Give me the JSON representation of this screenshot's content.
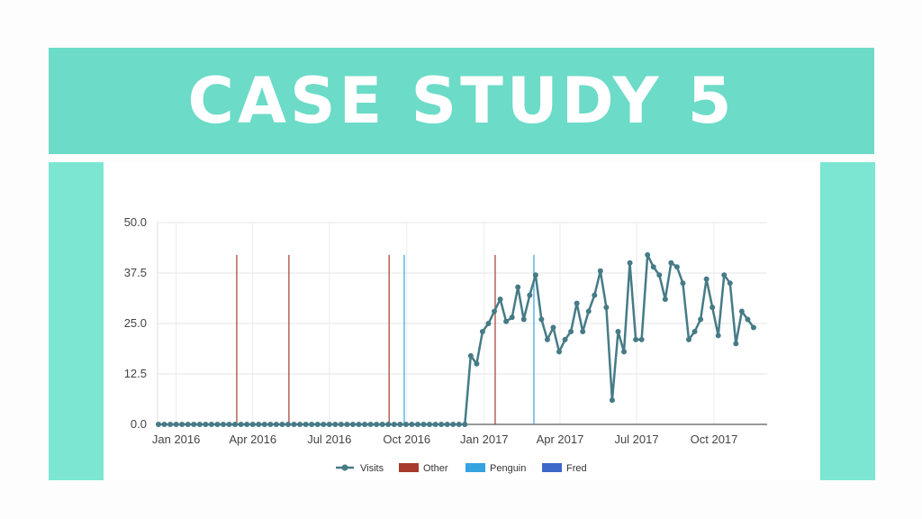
{
  "banner": {
    "title": "Case Study 5"
  },
  "colors": {
    "banner_bg": "#6cdbc8",
    "side_bars": "#7ce6d2",
    "visits": "#467b86",
    "other": "#a83a2c",
    "penguin": "#35a3e0",
    "fred": "#3b68c9"
  },
  "chart_data": {
    "type": "line",
    "title": "",
    "xlabel": "",
    "ylabel": "",
    "ylim": [
      0,
      50
    ],
    "yticks": [
      "0.0",
      "12.5",
      "25.0",
      "37.5",
      "50.0"
    ],
    "xticks": [
      {
        "date": "2016-01-01",
        "label": "Jan 2016"
      },
      {
        "date": "2016-04-01",
        "label": "Apr 2016"
      },
      {
        "date": "2016-07-01",
        "label": "Jul 2016"
      },
      {
        "date": "2016-10-01",
        "label": "Oct 2016"
      },
      {
        "date": "2017-01-01",
        "label": "Jan 2017"
      },
      {
        "date": "2017-04-01",
        "label": "Apr 2017"
      },
      {
        "date": "2017-07-01",
        "label": "Jul 2017"
      },
      {
        "date": "2017-10-01",
        "label": "Oct 2017"
      }
    ],
    "xlim": [
      "2015-12-11",
      "2017-12-02"
    ],
    "grid": true,
    "legend_position": "bottom",
    "series": [
      {
        "name": "Visits",
        "points": [
          {
            "x": "2015-12-11",
            "y": 0
          },
          {
            "x": "2015-12-18",
            "y": 0
          },
          {
            "x": "2015-12-25",
            "y": 0
          },
          {
            "x": "2016-01-01",
            "y": 0
          },
          {
            "x": "2016-01-08",
            "y": 0
          },
          {
            "x": "2016-01-15",
            "y": 0
          },
          {
            "x": "2016-01-22",
            "y": 0
          },
          {
            "x": "2016-01-29",
            "y": 0
          },
          {
            "x": "2016-02-05",
            "y": 0
          },
          {
            "x": "2016-02-12",
            "y": 0
          },
          {
            "x": "2016-02-19",
            "y": 0
          },
          {
            "x": "2016-02-26",
            "y": 0
          },
          {
            "x": "2016-03-04",
            "y": 0
          },
          {
            "x": "2016-03-11",
            "y": 0
          },
          {
            "x": "2016-03-18",
            "y": 0
          },
          {
            "x": "2016-03-25",
            "y": 0
          },
          {
            "x": "2016-04-01",
            "y": 0
          },
          {
            "x": "2016-04-08",
            "y": 0
          },
          {
            "x": "2016-04-15",
            "y": 0
          },
          {
            "x": "2016-04-22",
            "y": 0
          },
          {
            "x": "2016-04-29",
            "y": 0
          },
          {
            "x": "2016-05-06",
            "y": 0
          },
          {
            "x": "2016-05-13",
            "y": 0
          },
          {
            "x": "2016-05-20",
            "y": 0
          },
          {
            "x": "2016-05-27",
            "y": 0
          },
          {
            "x": "2016-06-03",
            "y": 0
          },
          {
            "x": "2016-06-10",
            "y": 0
          },
          {
            "x": "2016-06-17",
            "y": 0
          },
          {
            "x": "2016-06-24",
            "y": 0
          },
          {
            "x": "2016-07-01",
            "y": 0
          },
          {
            "x": "2016-07-08",
            "y": 0
          },
          {
            "x": "2016-07-15",
            "y": 0
          },
          {
            "x": "2016-07-22",
            "y": 0
          },
          {
            "x": "2016-07-29",
            "y": 0
          },
          {
            "x": "2016-08-05",
            "y": 0
          },
          {
            "x": "2016-08-12",
            "y": 0
          },
          {
            "x": "2016-08-19",
            "y": 0
          },
          {
            "x": "2016-08-26",
            "y": 0
          },
          {
            "x": "2016-09-02",
            "y": 0
          },
          {
            "x": "2016-09-09",
            "y": 0
          },
          {
            "x": "2016-09-16",
            "y": 0
          },
          {
            "x": "2016-09-23",
            "y": 0
          },
          {
            "x": "2016-09-30",
            "y": 0
          },
          {
            "x": "2016-10-07",
            "y": 0
          },
          {
            "x": "2016-10-14",
            "y": 0
          },
          {
            "x": "2016-10-21",
            "y": 0
          },
          {
            "x": "2016-10-28",
            "y": 0
          },
          {
            "x": "2016-11-04",
            "y": 0
          },
          {
            "x": "2016-11-11",
            "y": 0
          },
          {
            "x": "2016-11-18",
            "y": 0
          },
          {
            "x": "2016-11-25",
            "y": 0
          },
          {
            "x": "2016-12-02",
            "y": 0
          },
          {
            "x": "2016-12-09",
            "y": 0
          },
          {
            "x": "2016-12-16",
            "y": 17
          },
          {
            "x": "2016-12-23",
            "y": 15
          },
          {
            "x": "2016-12-30",
            "y": 23
          },
          {
            "x": "2017-01-06",
            "y": 25
          },
          {
            "x": "2017-01-13",
            "y": 28
          },
          {
            "x": "2017-01-20",
            "y": 31
          },
          {
            "x": "2017-01-27",
            "y": 25.5
          },
          {
            "x": "2017-02-03",
            "y": 26.5
          },
          {
            "x": "2017-02-10",
            "y": 34
          },
          {
            "x": "2017-02-17",
            "y": 26
          },
          {
            "x": "2017-02-24",
            "y": 32
          },
          {
            "x": "2017-03-03",
            "y": 37
          },
          {
            "x": "2017-03-10",
            "y": 26
          },
          {
            "x": "2017-03-17",
            "y": 21
          },
          {
            "x": "2017-03-24",
            "y": 24
          },
          {
            "x": "2017-03-31",
            "y": 18
          },
          {
            "x": "2017-04-07",
            "y": 21
          },
          {
            "x": "2017-04-14",
            "y": 23
          },
          {
            "x": "2017-04-21",
            "y": 30
          },
          {
            "x": "2017-04-28",
            "y": 23
          },
          {
            "x": "2017-05-05",
            "y": 28
          },
          {
            "x": "2017-05-12",
            "y": 32
          },
          {
            "x": "2017-05-19",
            "y": 38
          },
          {
            "x": "2017-05-26",
            "y": 29
          },
          {
            "x": "2017-06-02",
            "y": 6
          },
          {
            "x": "2017-06-09",
            "y": 23
          },
          {
            "x": "2017-06-16",
            "y": 18
          },
          {
            "x": "2017-06-23",
            "y": 40
          },
          {
            "x": "2017-06-30",
            "y": 21
          },
          {
            "x": "2017-07-07",
            "y": 21
          },
          {
            "x": "2017-07-14",
            "y": 42
          },
          {
            "x": "2017-07-21",
            "y": 39
          },
          {
            "x": "2017-07-28",
            "y": 37
          },
          {
            "x": "2017-08-04",
            "y": 31
          },
          {
            "x": "2017-08-11",
            "y": 40
          },
          {
            "x": "2017-08-18",
            "y": 39
          },
          {
            "x": "2017-08-25",
            "y": 35
          },
          {
            "x": "2017-09-01",
            "y": 21
          },
          {
            "x": "2017-09-08",
            "y": 23
          },
          {
            "x": "2017-09-15",
            "y": 26
          },
          {
            "x": "2017-09-22",
            "y": 36
          },
          {
            "x": "2017-09-29",
            "y": 29
          },
          {
            "x": "2017-10-06",
            "y": 22
          },
          {
            "x": "2017-10-13",
            "y": 37
          },
          {
            "x": "2017-10-20",
            "y": 35
          },
          {
            "x": "2017-10-27",
            "y": 20
          },
          {
            "x": "2017-11-03",
            "y": 28
          },
          {
            "x": "2017-11-10",
            "y": 26
          },
          {
            "x": "2017-11-17",
            "y": 24
          }
        ]
      }
    ],
    "events": [
      {
        "type": "Other",
        "date": "2016-03-13"
      },
      {
        "type": "Other",
        "date": "2016-05-14"
      },
      {
        "type": "Other",
        "date": "2016-09-10"
      },
      {
        "type": "Penguin",
        "date": "2016-09-28"
      },
      {
        "type": "Other",
        "date": "2017-01-14"
      },
      {
        "type": "Penguin",
        "date": "2017-03-01"
      }
    ],
    "event_top": 42,
    "legend": [
      "Visits",
      "Other",
      "Penguin",
      "Fred"
    ]
  }
}
